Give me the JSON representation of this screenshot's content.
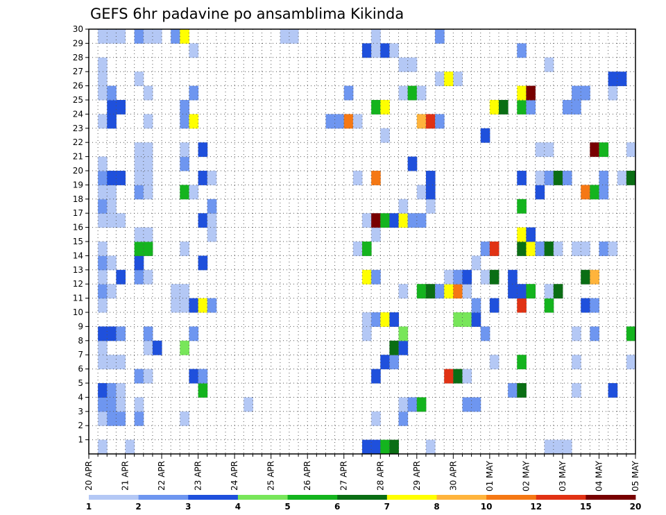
{
  "chart_data": {
    "type": "heatmap",
    "title": "GEFS 6hr padavine po ansamblima Kikinda",
    "xlabel": "",
    "ylabel": "",
    "x_tick_labels": [
      "20 APR",
      "21 APR",
      "22 APR",
      "23 APR",
      "24 APR",
      "25 APR",
      "26 APR",
      "27 APR",
      "28 APR",
      "29 APR",
      "30 APR",
      "01 MAY",
      "02 MAY",
      "03 MAY",
      "04 MAY",
      "05 MAY"
    ],
    "y_tick_labels": [
      "1",
      "2",
      "3",
      "4",
      "5",
      "6",
      "7",
      "8",
      "9",
      "10",
      "11",
      "12",
      "13",
      "14",
      "15",
      "16",
      "17",
      "18",
      "19",
      "20",
      "21",
      "22",
      "23",
      "24",
      "25",
      "26",
      "27",
      "28",
      "29",
      "30"
    ],
    "ylim": [
      0,
      30
    ],
    "x_steps_per_day": 4,
    "x_total_steps": 60,
    "grid": true,
    "legend": {
      "colors": [
        "#b4c8f5",
        "#6e96f0",
        "#1f50dc",
        "#78e65a",
        "#14b41e",
        "#0a6e14",
        "#ffff00",
        "#ffb43c",
        "#f57814",
        "#e13214",
        "#780000"
      ],
      "labels": [
        "1",
        "2",
        "3",
        "4",
        "5",
        "6",
        "7",
        "8",
        "10",
        "12",
        "15",
        "20"
      ]
    },
    "cells_format": "[time_step, member, color_class] ; color_class indexes legend.colors",
    "cells": [
      [
        1,
        0,
        0
      ],
      [
        4,
        0,
        0
      ],
      [
        30,
        0,
        2
      ],
      [
        31,
        0,
        2
      ],
      [
        32,
        0,
        4
      ],
      [
        33,
        0,
        5
      ],
      [
        37,
        0,
        0
      ],
      [
        50,
        0,
        0
      ],
      [
        51,
        0,
        0
      ],
      [
        52,
        0,
        0
      ],
      [
        1,
        2,
        0
      ],
      [
        2,
        2,
        1
      ],
      [
        3,
        2,
        1
      ],
      [
        5,
        2,
        1
      ],
      [
        10,
        2,
        0
      ],
      [
        31,
        2,
        0
      ],
      [
        34,
        2,
        1
      ],
      [
        1,
        3,
        1
      ],
      [
        2,
        3,
        1
      ],
      [
        3,
        3,
        0
      ],
      [
        5,
        3,
        0
      ],
      [
        17,
        3,
        0
      ],
      [
        34,
        3,
        0
      ],
      [
        35,
        3,
        1
      ],
      [
        36,
        3,
        4
      ],
      [
        41,
        3,
        1
      ],
      [
        42,
        3,
        1
      ],
      [
        1,
        4,
        2
      ],
      [
        2,
        4,
        1
      ],
      [
        3,
        4,
        0
      ],
      [
        12,
        4,
        4
      ],
      [
        46,
        4,
        1
      ],
      [
        47,
        4,
        5
      ],
      [
        53,
        4,
        0
      ],
      [
        57,
        4,
        2
      ],
      [
        5,
        5,
        1
      ],
      [
        6,
        5,
        0
      ],
      [
        11,
        5,
        2
      ],
      [
        12,
        5,
        1
      ],
      [
        31,
        5,
        2
      ],
      [
        39,
        5,
        9
      ],
      [
        40,
        5,
        5
      ],
      [
        41,
        5,
        0
      ],
      [
        1,
        6,
        0
      ],
      [
        2,
        6,
        0
      ],
      [
        3,
        6,
        0
      ],
      [
        32,
        6,
        2
      ],
      [
        33,
        6,
        1
      ],
      [
        44,
        6,
        0
      ],
      [
        47,
        6,
        4
      ],
      [
        53,
        6,
        0
      ],
      [
        59,
        6,
        0
      ],
      [
        1,
        7,
        0
      ],
      [
        6,
        7,
        0
      ],
      [
        7,
        7,
        2
      ],
      [
        10,
        7,
        3
      ],
      [
        33,
        7,
        5
      ],
      [
        34,
        7,
        2
      ],
      [
        1,
        8,
        2
      ],
      [
        2,
        8,
        2
      ],
      [
        3,
        8,
        1
      ],
      [
        6,
        8,
        1
      ],
      [
        11,
        8,
        1
      ],
      [
        30,
        8,
        0
      ],
      [
        34,
        8,
        3
      ],
      [
        43,
        8,
        1
      ],
      [
        53,
        8,
        0
      ],
      [
        55,
        8,
        1
      ],
      [
        59,
        8,
        4
      ],
      [
        30,
        9,
        0
      ],
      [
        31,
        9,
        1
      ],
      [
        32,
        9,
        6
      ],
      [
        33,
        9,
        2
      ],
      [
        40,
        9,
        3
      ],
      [
        41,
        9,
        3
      ],
      [
        42,
        9,
        2
      ],
      [
        1,
        10,
        0
      ],
      [
        9,
        10,
        0
      ],
      [
        10,
        10,
        0
      ],
      [
        11,
        10,
        2
      ],
      [
        12,
        10,
        6
      ],
      [
        13,
        10,
        1
      ],
      [
        42,
        10,
        1
      ],
      [
        44,
        10,
        2
      ],
      [
        47,
        10,
        9
      ],
      [
        50,
        10,
        4
      ],
      [
        54,
        10,
        2
      ],
      [
        55,
        10,
        1
      ],
      [
        1,
        11,
        1
      ],
      [
        2,
        11,
        0
      ],
      [
        9,
        11,
        0
      ],
      [
        10,
        11,
        0
      ],
      [
        34,
        11,
        0
      ],
      [
        36,
        11,
        4
      ],
      [
        37,
        11,
        5
      ],
      [
        38,
        11,
        1
      ],
      [
        39,
        11,
        6
      ],
      [
        40,
        11,
        8
      ],
      [
        41,
        11,
        0
      ],
      [
        46,
        11,
        2
      ],
      [
        47,
        11,
        2
      ],
      [
        48,
        11,
        4
      ],
      [
        50,
        11,
        0
      ],
      [
        51,
        11,
        5
      ],
      [
        1,
        12,
        0
      ],
      [
        3,
        12,
        2
      ],
      [
        5,
        12,
        1
      ],
      [
        6,
        12,
        0
      ],
      [
        30,
        12,
        6
      ],
      [
        31,
        12,
        1
      ],
      [
        39,
        12,
        0
      ],
      [
        40,
        12,
        1
      ],
      [
        41,
        12,
        2
      ],
      [
        43,
        12,
        0
      ],
      [
        44,
        12,
        5
      ],
      [
        46,
        12,
        2
      ],
      [
        54,
        12,
        5
      ],
      [
        55,
        12,
        7
      ],
      [
        1,
        13,
        1
      ],
      [
        2,
        13,
        0
      ],
      [
        5,
        13,
        2
      ],
      [
        12,
        13,
        2
      ],
      [
        42,
        13,
        0
      ],
      [
        1,
        14,
        0
      ],
      [
        5,
        14,
        4
      ],
      [
        6,
        14,
        4
      ],
      [
        10,
        14,
        0
      ],
      [
        29,
        14,
        0
      ],
      [
        30,
        14,
        4
      ],
      [
        43,
        14,
        1
      ],
      [
        44,
        14,
        9
      ],
      [
        47,
        14,
        5
      ],
      [
        48,
        14,
        6
      ],
      [
        49,
        14,
        1
      ],
      [
        50,
        14,
        5
      ],
      [
        51,
        14,
        0
      ],
      [
        53,
        14,
        0
      ],
      [
        54,
        14,
        0
      ],
      [
        56,
        14,
        1
      ],
      [
        57,
        14,
        0
      ],
      [
        5,
        15,
        0
      ],
      [
        6,
        15,
        0
      ],
      [
        13,
        15,
        0
      ],
      [
        31,
        15,
        0
      ],
      [
        47,
        15,
        6
      ],
      [
        48,
        15,
        2
      ],
      [
        1,
        16,
        0
      ],
      [
        2,
        16,
        0
      ],
      [
        3,
        16,
        0
      ],
      [
        12,
        16,
        2
      ],
      [
        13,
        16,
        0
      ],
      [
        30,
        16,
        0
      ],
      [
        31,
        16,
        10
      ],
      [
        32,
        16,
        4
      ],
      [
        33,
        16,
        2
      ],
      [
        34,
        16,
        6
      ],
      [
        35,
        16,
        1
      ],
      [
        36,
        16,
        1
      ],
      [
        1,
        17,
        1
      ],
      [
        2,
        17,
        0
      ],
      [
        13,
        17,
        1
      ],
      [
        34,
        17,
        0
      ],
      [
        37,
        17,
        0
      ],
      [
        47,
        17,
        4
      ],
      [
        1,
        18,
        0
      ],
      [
        2,
        18,
        0
      ],
      [
        5,
        18,
        1
      ],
      [
        6,
        18,
        0
      ],
      [
        10,
        18,
        4
      ],
      [
        11,
        18,
        0
      ],
      [
        36,
        18,
        0
      ],
      [
        37,
        18,
        2
      ],
      [
        49,
        18,
        2
      ],
      [
        54,
        18,
        8
      ],
      [
        55,
        18,
        4
      ],
      [
        56,
        18,
        1
      ],
      [
        1,
        19,
        1
      ],
      [
        2,
        19,
        2
      ],
      [
        3,
        19,
        2
      ],
      [
        5,
        19,
        0
      ],
      [
        6,
        19,
        0
      ],
      [
        12,
        19,
        2
      ],
      [
        13,
        19,
        0
      ],
      [
        29,
        19,
        0
      ],
      [
        31,
        19,
        8
      ],
      [
        37,
        19,
        2
      ],
      [
        47,
        19,
        2
      ],
      [
        49,
        19,
        0
      ],
      [
        50,
        19,
        1
      ],
      [
        51,
        19,
        5
      ],
      [
        52,
        19,
        1
      ],
      [
        56,
        19,
        1
      ],
      [
        58,
        19,
        0
      ],
      [
        59,
        19,
        5
      ],
      [
        1,
        20,
        0
      ],
      [
        5,
        20,
        0
      ],
      [
        6,
        20,
        0
      ],
      [
        10,
        20,
        1
      ],
      [
        35,
        20,
        2
      ],
      [
        5,
        21,
        0
      ],
      [
        6,
        21,
        0
      ],
      [
        10,
        21,
        0
      ],
      [
        12,
        21,
        2
      ],
      [
        49,
        21,
        0
      ],
      [
        50,
        21,
        0
      ],
      [
        55,
        21,
        10
      ],
      [
        56,
        21,
        4
      ],
      [
        59,
        21,
        0
      ],
      [
        32,
        22,
        0
      ],
      [
        43,
        22,
        2
      ],
      [
        1,
        23,
        0
      ],
      [
        2,
        23,
        2
      ],
      [
        6,
        23,
        0
      ],
      [
        10,
        23,
        1
      ],
      [
        11,
        23,
        6
      ],
      [
        26,
        23,
        1
      ],
      [
        27,
        23,
        1
      ],
      [
        28,
        23,
        8
      ],
      [
        29,
        23,
        0
      ],
      [
        36,
        23,
        7
      ],
      [
        37,
        23,
        9
      ],
      [
        38,
        23,
        1
      ],
      [
        2,
        24,
        2
      ],
      [
        3,
        24,
        2
      ],
      [
        10,
        24,
        1
      ],
      [
        31,
        24,
        4
      ],
      [
        32,
        24,
        6
      ],
      [
        44,
        24,
        6
      ],
      [
        45,
        24,
        5
      ],
      [
        47,
        24,
        4
      ],
      [
        48,
        24,
        1
      ],
      [
        52,
        24,
        1
      ],
      [
        53,
        24,
        1
      ],
      [
        1,
        25,
        0
      ],
      [
        2,
        25,
        1
      ],
      [
        6,
        25,
        0
      ],
      [
        11,
        25,
        1
      ],
      [
        28,
        25,
        1
      ],
      [
        34,
        25,
        0
      ],
      [
        35,
        25,
        4
      ],
      [
        36,
        25,
        0
      ],
      [
        47,
        25,
        6
      ],
      [
        48,
        25,
        10
      ],
      [
        53,
        25,
        1
      ],
      [
        54,
        25,
        1
      ],
      [
        57,
        25,
        0
      ],
      [
        1,
        26,
        0
      ],
      [
        5,
        26,
        0
      ],
      [
        38,
        26,
        0
      ],
      [
        39,
        26,
        6
      ],
      [
        40,
        26,
        0
      ],
      [
        57,
        26,
        2
      ],
      [
        58,
        26,
        2
      ],
      [
        1,
        27,
        0
      ],
      [
        34,
        27,
        0
      ],
      [
        35,
        27,
        0
      ],
      [
        50,
        27,
        0
      ],
      [
        11,
        28,
        0
      ],
      [
        30,
        28,
        2
      ],
      [
        31,
        28,
        0
      ],
      [
        32,
        28,
        2
      ],
      [
        33,
        28,
        0
      ],
      [
        47,
        28,
        1
      ],
      [
        1,
        29,
        0
      ],
      [
        2,
        29,
        0
      ],
      [
        3,
        29,
        0
      ],
      [
        5,
        29,
        1
      ],
      [
        6,
        29,
        0
      ],
      [
        7,
        29,
        0
      ],
      [
        9,
        29,
        1
      ],
      [
        10,
        29,
        6
      ],
      [
        21,
        29,
        0
      ],
      [
        22,
        29,
        0
      ],
      [
        31,
        29,
        0
      ],
      [
        38,
        29,
        1
      ]
    ]
  }
}
